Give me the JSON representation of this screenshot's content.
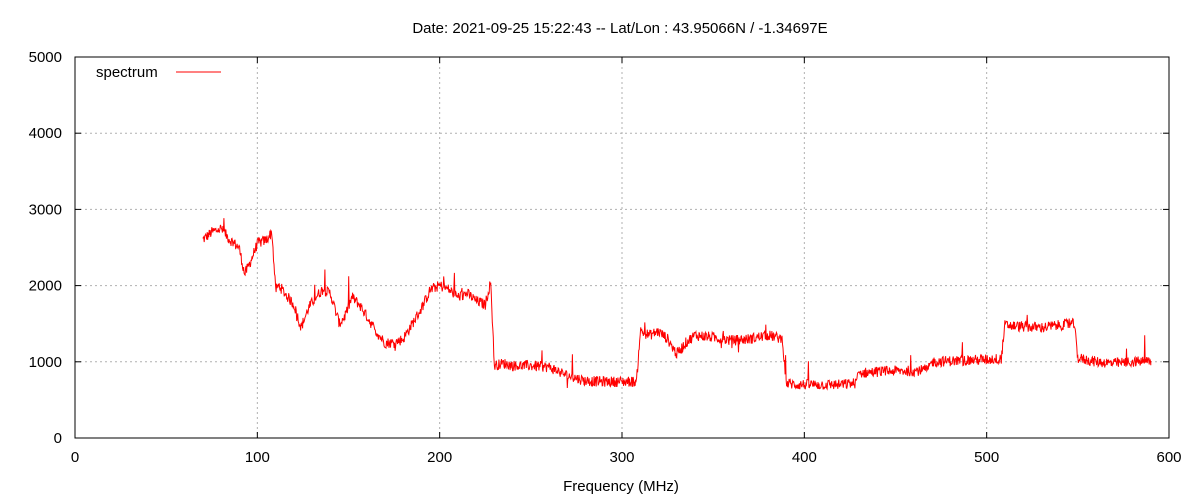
{
  "chart_data": {
    "type": "line",
    "title": "Date: 2021-09-25 15:22:43  --  Lat/Lon : 43.95066N / -1.34697E",
    "xlabel": "Frequency (MHz)",
    "ylabel": "",
    "xlim": [
      0,
      600
    ],
    "ylim": [
      0,
      5000
    ],
    "xticks": [
      0,
      100,
      200,
      300,
      400,
      500,
      600
    ],
    "yticks": [
      0,
      1000,
      2000,
      3000,
      4000,
      5000
    ],
    "grid": true,
    "legend_position": "top-left",
    "series": [
      {
        "name": "spectrum",
        "color": "#ff0000",
        "x": [
          70,
          75,
          80,
          85,
          90,
          93,
          96,
          100,
          105,
          108,
          110,
          112,
          115,
          120,
          124,
          128,
          132,
          136,
          140,
          145,
          148,
          152,
          156,
          160,
          165,
          170,
          175,
          180,
          185,
          190,
          195,
          200,
          205,
          210,
          215,
          220,
          225,
          228,
          230,
          235,
          240,
          250,
          260,
          270,
          280,
          290,
          300,
          308,
          310,
          315,
          320,
          325,
          330,
          335,
          340,
          350,
          360,
          370,
          380,
          388,
          390,
          395,
          400,
          410,
          420,
          428,
          430,
          440,
          450,
          460,
          468,
          470,
          480,
          490,
          500,
          508,
          510,
          520,
          530,
          540,
          548,
          550,
          560,
          570,
          580,
          590
        ],
        "y": [
          2600,
          2700,
          2750,
          2600,
          2500,
          2150,
          2300,
          2550,
          2600,
          2700,
          1950,
          2000,
          1900,
          1750,
          1450,
          1700,
          1850,
          1950,
          1900,
          1500,
          1600,
          1850,
          1750,
          1600,
          1400,
          1250,
          1250,
          1300,
          1500,
          1700,
          1950,
          2000,
          1950,
          1850,
          1900,
          1800,
          1750,
          2050,
          950,
          980,
          950,
          950,
          930,
          820,
          750,
          740,
          740,
          740,
          1400,
          1350,
          1400,
          1300,
          1100,
          1250,
          1350,
          1320,
          1280,
          1300,
          1350,
          1300,
          720,
          700,
          700,
          700,
          700,
          720,
          850,
          870,
          880,
          880,
          900,
          1000,
          1010,
          1020,
          1030,
          1040,
          1480,
          1460,
          1450,
          1480,
          1500,
          1050,
          1000,
          980,
          1000,
          1010
        ]
      }
    ]
  }
}
